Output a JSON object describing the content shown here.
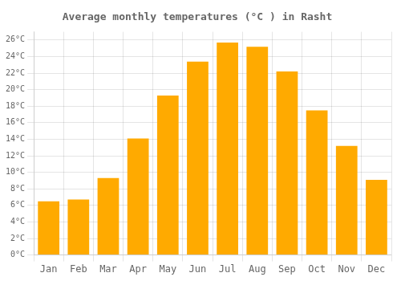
{
  "chart_data": {
    "type": "bar",
    "title": "Average monthly temperatures (°C ) in Rasht",
    "categories": [
      "Jan",
      "Feb",
      "Mar",
      "Apr",
      "May",
      "Jun",
      "Jul",
      "Aug",
      "Sep",
      "Oct",
      "Nov",
      "Dec"
    ],
    "values": [
      6.5,
      6.7,
      9.3,
      14.1,
      19.3,
      23.4,
      25.7,
      25.2,
      22.2,
      17.5,
      13.2,
      9.1
    ],
    "color": "#FFAA00",
    "ylim": [
      0,
      27
    ],
    "yticks": [
      {
        "value": 0,
        "label": "0°C"
      },
      {
        "value": 2,
        "label": "2°C"
      },
      {
        "value": 4,
        "label": "4°C"
      },
      {
        "value": 6,
        "label": "6°C"
      },
      {
        "value": 8,
        "label": "8°C"
      },
      {
        "value": 10,
        "label": "10°C"
      },
      {
        "value": 12,
        "label": "12°C"
      },
      {
        "value": 14,
        "label": "14°C"
      },
      {
        "value": 16,
        "label": "16°C"
      },
      {
        "value": 18,
        "label": "18°C"
      },
      {
        "value": 20,
        "label": "20°C"
      },
      {
        "value": 22,
        "label": "22°C"
      },
      {
        "value": 24,
        "label": "24°C"
      },
      {
        "value": 26,
        "label": "26°C"
      }
    ],
    "grid": true
  }
}
